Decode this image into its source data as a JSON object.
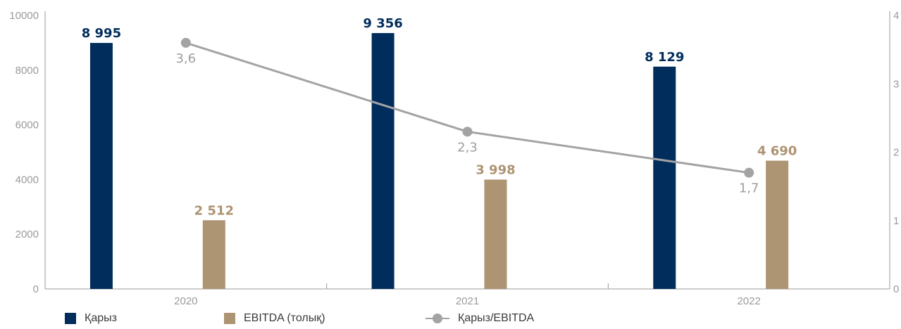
{
  "chart_data": {
    "type": "bar",
    "categories": [
      "2020",
      "2021",
      "2022"
    ],
    "series": [
      {
        "name": "Қарыз",
        "axis": "left",
        "type": "bar",
        "values": [
          8995,
          9356,
          8129
        ],
        "labels": [
          "8 995",
          "9 356",
          "8 129"
        ],
        "color": "#002D5C"
      },
      {
        "name": "EBITDA (толық)",
        "axis": "left",
        "type": "bar",
        "values": [
          2512,
          3998,
          4690
        ],
        "labels": [
          "2 512",
          "3 998",
          "4 690"
        ],
        "color": "#AD9472"
      },
      {
        "name": "Қарыз/EBITDA",
        "axis": "right",
        "type": "line",
        "values": [
          3.6,
          2.3,
          1.7
        ],
        "labels": [
          "3,6",
          "2,3",
          "1,7"
        ],
        "color": "#A3A3A3"
      }
    ],
    "ylim": [
      0,
      10000
    ],
    "yticks": [
      "0",
      "2000",
      "4000",
      "6000",
      "8000",
      "10000"
    ],
    "y2lim": [
      0,
      4
    ],
    "y2ticks": [
      "0",
      "1",
      "2",
      "3",
      "4"
    ],
    "legend_position": "bottom-left",
    "grid": false
  }
}
